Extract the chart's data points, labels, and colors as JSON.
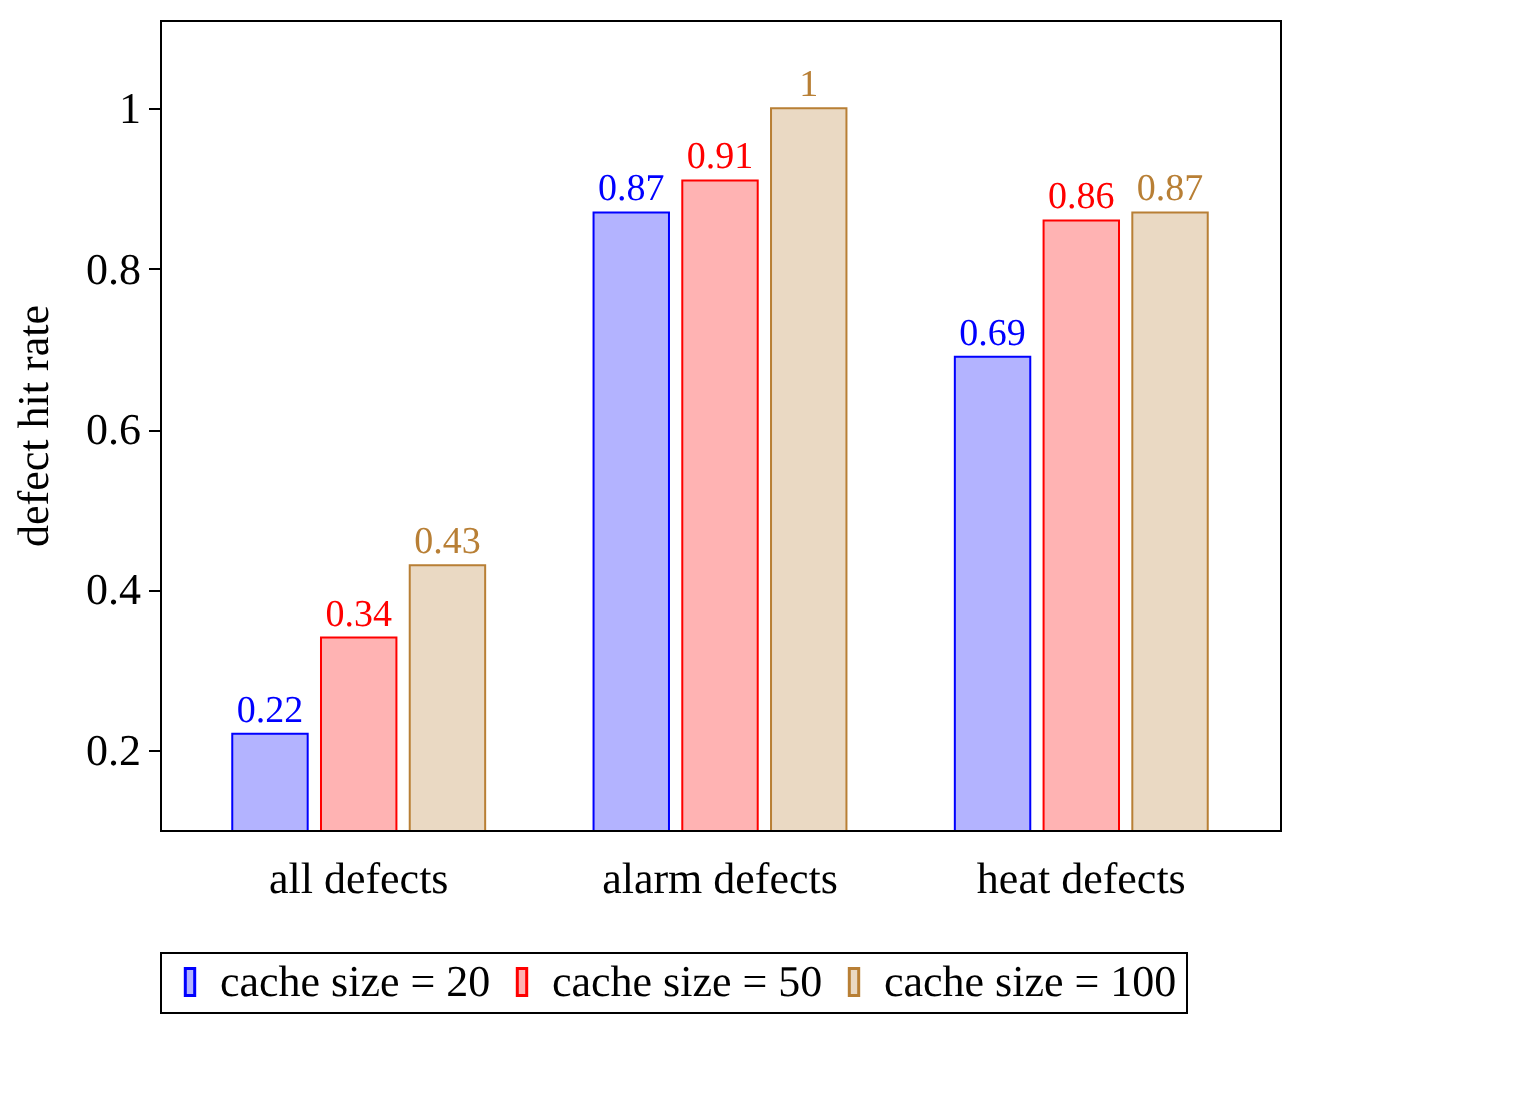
{
  "chart_data": {
    "type": "bar",
    "ylabel": "defect hit rate",
    "categories": [
      "all defects",
      "alarm defects",
      "heat defects"
    ],
    "series": [
      {
        "name": "cache size = 20",
        "color": "#b3b3ff",
        "values": [
          0.22,
          0.87,
          0.69
        ]
      },
      {
        "name": "cache size = 50",
        "color": "#ffb3b3",
        "values": [
          0.34,
          0.91,
          0.86
        ]
      },
      {
        "name": "cache size = 100",
        "color": "#ead9c3",
        "values": [
          0.43,
          1,
          0.87
        ]
      }
    ],
    "ylim": [
      0.1,
      1.11
    ],
    "yticks": [
      0.2,
      0.4,
      0.6,
      0.8,
      {
        "value": 1,
        "label": "1"
      }
    ],
    "data_labels": true,
    "legend": "bottom",
    "grid": false
  }
}
